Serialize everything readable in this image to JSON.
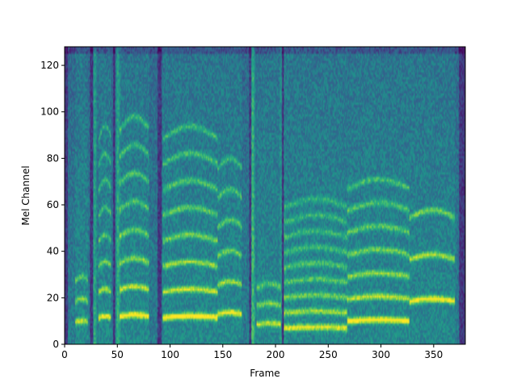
{
  "chart_data": {
    "type": "heatmap",
    "title": "",
    "xlabel": "Frame",
    "ylabel": "Mel Channel",
    "xlim": [
      0,
      380
    ],
    "ylim": [
      0,
      128
    ],
    "x_ticks": [
      0,
      50,
      100,
      150,
      200,
      250,
      300,
      350
    ],
    "y_ticks": [
      0,
      20,
      40,
      60,
      80,
      100,
      120
    ],
    "colormap": "viridis",
    "grid": false,
    "segments": [
      {
        "start": 10,
        "end": 22,
        "f0": 9,
        "count": 3,
        "strength": 0.7
      },
      {
        "start": 32,
        "end": 44,
        "f0": 11,
        "count": 8,
        "strength": 0.85
      },
      {
        "start": 52,
        "end": 80,
        "f0": 11.5,
        "count": 8,
        "strength": 0.95
      },
      {
        "start": 93,
        "end": 145,
        "f0": 11,
        "count": 8,
        "strength": 1.0
      },
      {
        "start": 145,
        "end": 168,
        "f0": 12.5,
        "count": 6,
        "strength": 0.85
      },
      {
        "start": 182,
        "end": 205,
        "f0": 8,
        "count": 3,
        "strength": 0.7
      },
      {
        "start": 208,
        "end": 268,
        "f0": 6.5,
        "count": 9,
        "strength": 0.8
      },
      {
        "start": 268,
        "end": 327,
        "f0": 9.5,
        "count": 7,
        "strength": 0.95
      },
      {
        "start": 327,
        "end": 370,
        "f0": 18,
        "count": 3,
        "strength": 0.9
      }
    ],
    "silences": [
      {
        "start": 0,
        "end": 3
      },
      {
        "start": 24,
        "end": 27
      },
      {
        "start": 46,
        "end": 48
      },
      {
        "start": 88,
        "end": 92
      },
      {
        "start": 175,
        "end": 177
      },
      {
        "start": 206,
        "end": 208
      },
      {
        "start": 374,
        "end": 380
      }
    ],
    "bursts": [
      {
        "x": 28,
        "strength": 0.6
      },
      {
        "x": 50,
        "strength": 0.7
      },
      {
        "x": 178,
        "strength": 0.9
      },
      {
        "x": 206,
        "strength": 0.6
      }
    ]
  }
}
